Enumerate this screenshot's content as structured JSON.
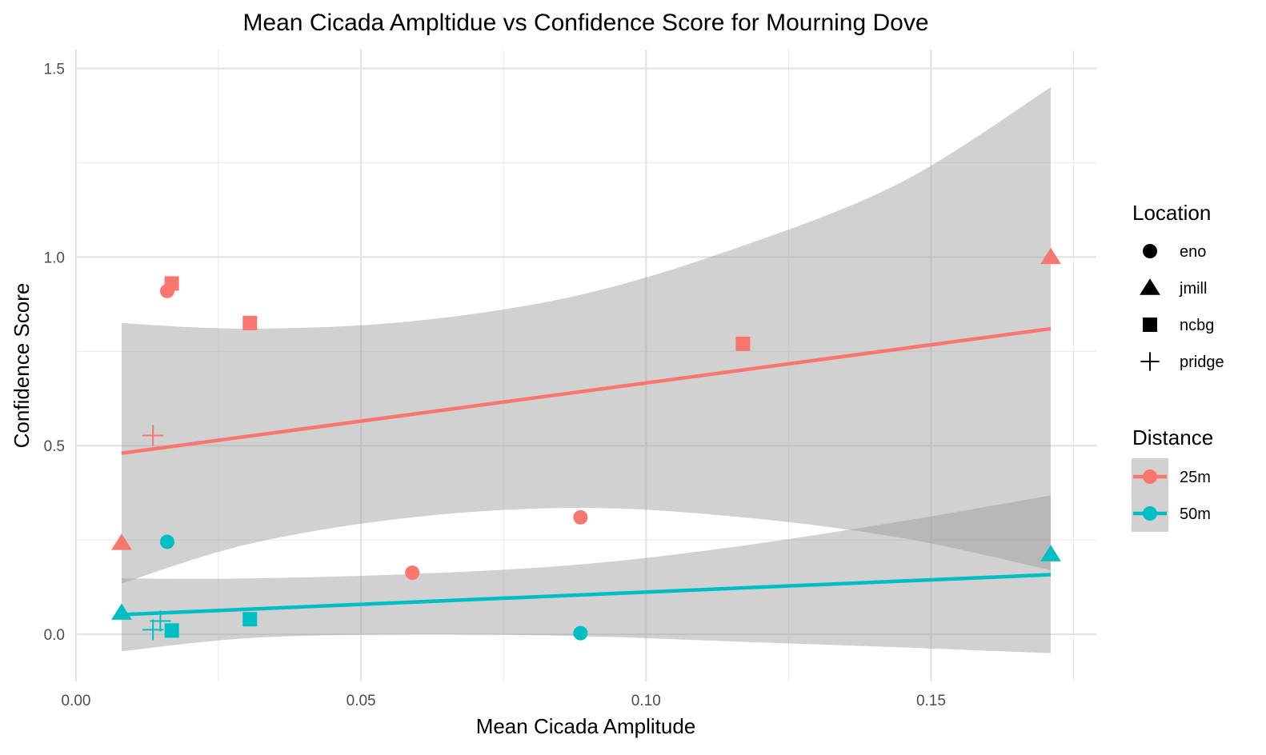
{
  "chart_data": {
    "type": "scatter",
    "title": "Mean Cicada Ampltidue vs Confidence Score for Mourning Dove",
    "xlabel": "Mean Cicada Amplitude",
    "ylabel": "Confidence Score",
    "xlim": [
      0.0,
      0.179
    ],
    "ylim": [
      -0.125,
      1.55
    ],
    "x_ticks": [
      0.0,
      0.05,
      0.1,
      0.15
    ],
    "x_tick_labels": [
      "0.00",
      "0.05",
      "0.10",
      "0.15"
    ],
    "x_minor_ticks": [
      0.025,
      0.075,
      0.125,
      0.175
    ],
    "y_ticks": [
      0.0,
      0.5,
      1.0,
      1.5
    ],
    "y_tick_labels": [
      "0.0",
      "0.5",
      "1.0",
      "1.5"
    ],
    "y_minor_ticks": [
      0.25,
      0.75,
      1.25
    ],
    "grid": true,
    "legend_position": "right",
    "legends": [
      {
        "title": "Location",
        "kind": "shape",
        "entries": [
          {
            "label": "eno",
            "shape": "circle"
          },
          {
            "label": "jmill",
            "shape": "triangle"
          },
          {
            "label": "ncbg",
            "shape": "square"
          },
          {
            "label": "pridge",
            "shape": "plus"
          }
        ]
      },
      {
        "title": "Distance",
        "kind": "color",
        "entries": [
          {
            "label": "25m",
            "color": "#F8766D"
          },
          {
            "label": "50m",
            "color": "#00BFC4"
          }
        ]
      }
    ],
    "series": [
      {
        "name": "25m",
        "color": "#F8766D",
        "points": [
          {
            "x": 0.016,
            "y": 0.91,
            "location": "eno"
          },
          {
            "x": 0.059,
            "y": 0.163,
            "location": "eno"
          },
          {
            "x": 0.0885,
            "y": 0.31,
            "location": "eno"
          },
          {
            "x": 0.008,
            "y": 0.242,
            "location": "jmill"
          },
          {
            "x": 0.171,
            "y": 1.0,
            "location": "jmill"
          },
          {
            "x": 0.0168,
            "y": 0.93,
            "location": "ncbg"
          },
          {
            "x": 0.0305,
            "y": 0.825,
            "location": "ncbg"
          },
          {
            "x": 0.117,
            "y": 0.77,
            "location": "ncbg"
          },
          {
            "x": 0.0135,
            "y": 0.527,
            "location": "pridge"
          }
        ],
        "fit": {
          "x": [
            0.008,
            0.171
          ],
          "y": [
            0.48,
            0.81
          ]
        },
        "band": {
          "x": [
            0.008,
            0.0305,
            0.059,
            0.0885,
            0.117,
            0.145,
            0.171
          ],
          "upper": [
            0.825,
            0.81,
            0.83,
            0.9,
            1.03,
            1.2,
            1.45
          ],
          "lower": [
            0.135,
            0.24,
            0.31,
            0.335,
            0.31,
            0.255,
            0.17
          ]
        }
      },
      {
        "name": "50m",
        "color": "#00BFC4",
        "points": [
          {
            "x": 0.016,
            "y": 0.245,
            "location": "eno"
          },
          {
            "x": 0.0885,
            "y": 0.003,
            "location": "eno"
          },
          {
            "x": 0.008,
            "y": 0.057,
            "location": "jmill"
          },
          {
            "x": 0.171,
            "y": 0.212,
            "location": "jmill"
          },
          {
            "x": 0.0168,
            "y": 0.01,
            "location": "ncbg"
          },
          {
            "x": 0.0305,
            "y": 0.04,
            "location": "ncbg"
          },
          {
            "x": 0.0135,
            "y": 0.012,
            "location": "pridge"
          },
          {
            "x": 0.0148,
            "y": 0.035,
            "location": "pridge"
          }
        ],
        "fit": {
          "x": [
            0.008,
            0.171
          ],
          "y": [
            0.052,
            0.158
          ]
        },
        "band": {
          "x": [
            0.008,
            0.0305,
            0.059,
            0.0885,
            0.117,
            0.145,
            0.171
          ],
          "upper": [
            0.148,
            0.148,
            0.16,
            0.185,
            0.235,
            0.3,
            0.368
          ],
          "lower": [
            -0.045,
            -0.01,
            0.0,
            -0.005,
            -0.02,
            -0.035,
            -0.05
          ]
        }
      }
    ]
  }
}
